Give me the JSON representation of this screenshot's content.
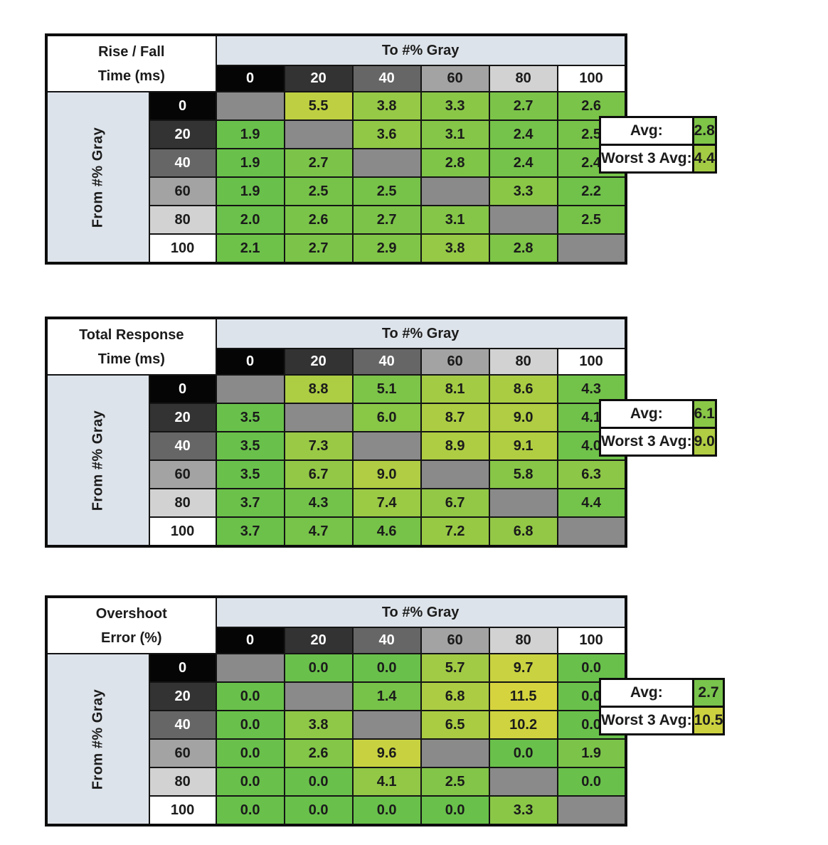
{
  "shared": {
    "col_axis_title": "To #% Gray",
    "row_axis_title": "From #% Gray",
    "gray_levels": [
      "0",
      "20",
      "40",
      "60",
      "80",
      "100"
    ],
    "level_bg": [
      "#050505",
      "#333333",
      "#666666",
      "#a3a3a3",
      "#d2d2d2",
      "#ffffff"
    ],
    "level_fg": [
      "#ffffff",
      "#ffffff",
      "#ffffff",
      "#1b1b1b",
      "#1b1b1b",
      "#1b1b1b"
    ],
    "diagonal_bg": "#8a8a8a",
    "band_bg": "#dde3ea",
    "avg_label": "Avg:",
    "worst_label": "Worst 3 Avg:",
    "green_min_color": "#69c14b",
    "yellow_max_color": "#d6d43e",
    "border_color": "#0d0d0d"
  },
  "chart_data": [
    {
      "type": "heatmap",
      "name": "rise-fall-time",
      "title_lines": [
        "Rise / Fall",
        "Time (ms)"
      ],
      "col_axis": "To #% Gray",
      "row_axis": "From #% Gray",
      "columns": [
        0,
        20,
        40,
        60,
        80,
        100
      ],
      "rows": [
        0,
        20,
        40,
        60,
        80,
        100
      ],
      "values": [
        [
          null,
          5.5,
          3.8,
          3.3,
          2.7,
          2.6
        ],
        [
          1.9,
          null,
          3.6,
          3.1,
          2.4,
          2.5
        ],
        [
          1.9,
          2.7,
          null,
          2.8,
          2.4,
          2.4
        ],
        [
          1.9,
          2.5,
          2.5,
          null,
          3.3,
          2.2
        ],
        [
          2.0,
          2.6,
          2.7,
          3.1,
          null,
          2.5
        ],
        [
          2.1,
          2.7,
          2.9,
          3.8,
          2.8,
          null
        ]
      ],
      "cell_colors": [
        [
          null,
          "#BED041",
          "#96C946",
          "#8AC747",
          "#7CC449",
          "#7AC449"
        ],
        [
          "#69C14B",
          null,
          "#91C846",
          "#85C648",
          "#75C34A",
          "#77C349"
        ],
        [
          "#69C14B",
          "#7CC449",
          null,
          "#7EC548",
          "#75C34A",
          "#75C34A"
        ],
        [
          "#69C14B",
          "#77C349",
          "#77C349",
          null,
          "#8AC747",
          "#70C24A"
        ],
        [
          "#6BC14B",
          "#7AC449",
          "#7CC449",
          "#85C648",
          null,
          "#77C349"
        ],
        [
          "#6EC24A",
          "#7CC449",
          "#81C548",
          "#96C946",
          "#7EC548",
          null
        ]
      ],
      "avg": {
        "value": 2.8,
        "color": "#7EC548"
      },
      "worst3": {
        "value": 4.4,
        "color": "#A4CB44"
      }
    },
    {
      "type": "heatmap",
      "name": "total-response-time",
      "title_lines": [
        "Total Response",
        "Time (ms)"
      ],
      "col_axis": "To #% Gray",
      "row_axis": "From #% Gray",
      "columns": [
        0,
        20,
        40,
        60,
        80,
        100
      ],
      "rows": [
        0,
        20,
        40,
        60,
        80,
        100
      ],
      "values": [
        [
          null,
          8.8,
          5.1,
          8.1,
          8.6,
          4.3
        ],
        [
          3.5,
          null,
          6.0,
          8.7,
          9.0,
          4.1
        ],
        [
          3.5,
          7.3,
          null,
          8.9,
          9.1,
          4.0
        ],
        [
          3.5,
          6.7,
          9.0,
          null,
          5.8,
          6.3
        ],
        [
          3.7,
          4.3,
          7.4,
          6.7,
          null,
          4.4
        ],
        [
          3.7,
          4.7,
          4.6,
          7.2,
          6.8,
          null
        ]
      ],
      "cell_colors": [
        [
          null,
          "#ADCD43",
          "#7DC549",
          "#A4CB44",
          "#AACC43",
          "#73C34A"
        ],
        [
          "#69C14B",
          null,
          "#89C747",
          "#ACCD43",
          "#B0CD43",
          "#71C24A"
        ],
        [
          "#69C14B",
          "#9AC945",
          null,
          "#AECD43",
          "#B1CE42",
          "#6FC24A"
        ],
        [
          "#69C14B",
          "#92C846",
          "#B0CD43",
          null,
          "#87C647",
          "#8DC747"
        ],
        [
          "#6CC14B",
          "#73C34A",
          "#9BCA45",
          "#92C846",
          null,
          "#74C34A"
        ],
        [
          "#6CC14B",
          "#78C349",
          "#77C349",
          "#98C945",
          "#93C846",
          null
        ]
      ],
      "avg": {
        "value": 6.1,
        "color": "#8AC747"
      },
      "worst3": {
        "value": 9.0,
        "color": "#B0CD43"
      }
    },
    {
      "type": "heatmap",
      "name": "overshoot-error",
      "title_lines": [
        "Overshoot",
        "Error (%)"
      ],
      "col_axis": "To #% Gray",
      "row_axis": "From #% Gray",
      "columns": [
        0,
        20,
        40,
        60,
        80,
        100
      ],
      "rows": [
        0,
        20,
        40,
        60,
        80,
        100
      ],
      "values": [
        [
          null,
          0.0,
          0.0,
          5.7,
          9.7,
          0.0
        ],
        [
          0.0,
          null,
          1.4,
          6.8,
          11.5,
          0.0
        ],
        [
          0.0,
          3.8,
          null,
          6.5,
          10.2,
          0.0
        ],
        [
          0.0,
          2.6,
          9.6,
          null,
          0.0,
          1.9
        ],
        [
          0.0,
          0.0,
          4.1,
          2.5,
          null,
          0.0
        ],
        [
          0.0,
          0.0,
          0.0,
          0.0,
          3.3,
          null
        ]
      ],
      "cell_colors": [
        [
          null,
          "#69C14B",
          "#69C14B",
          "#A1CB44",
          "#C9D240",
          "#69C14B"
        ],
        [
          "#69C14B",
          null,
          "#77C349",
          "#ACCD43",
          "#D6D43E",
          "#69C14B"
        ],
        [
          "#69C14B",
          "#8FC847",
          null,
          "#A9CC43",
          "#CED33F",
          "#69C14B"
        ],
        [
          "#69C14B",
          "#83C648",
          "#C8D240",
          null,
          "#69C14B",
          "#7CC449"
        ],
        [
          "#69C14B",
          "#69C14B",
          "#92C846",
          "#82C548",
          null,
          "#69C14B"
        ],
        [
          "#69C14B",
          "#69C14B",
          "#69C14B",
          "#69C14B",
          "#8AC747",
          null
        ]
      ],
      "avg": {
        "value": 2.7,
        "color": "#79C44C"
      },
      "worst3": {
        "value": 10.5,
        "color": "#CCD23F"
      }
    }
  ],
  "layout_tops": [
    47,
    445,
    837
  ]
}
